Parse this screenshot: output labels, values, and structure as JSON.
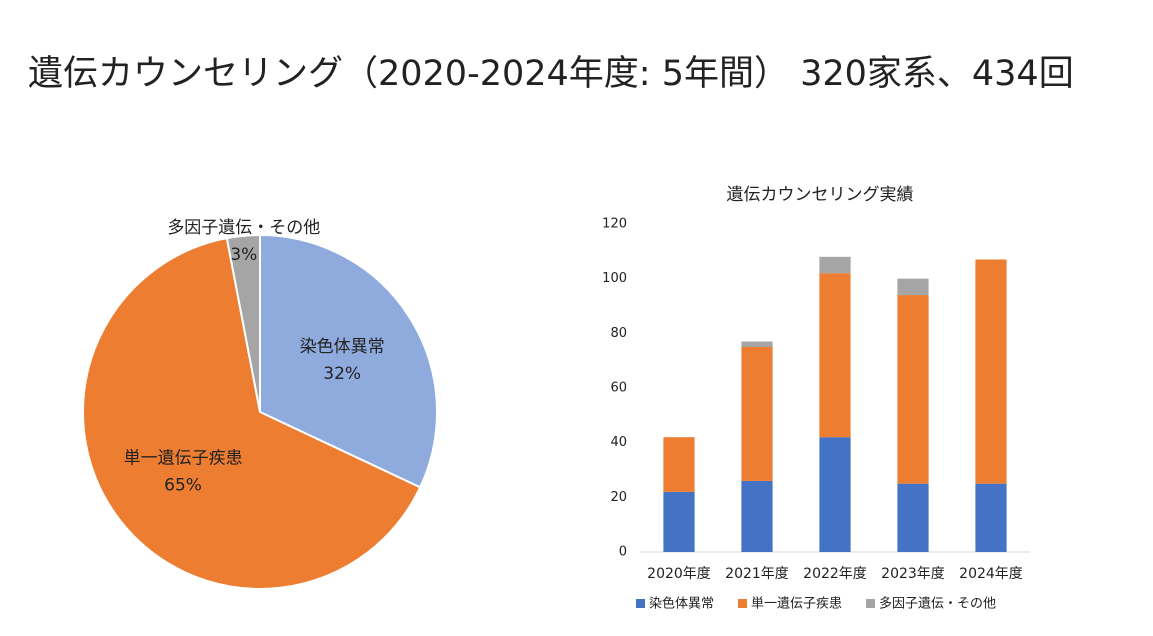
{
  "title": "遺伝カウンセリング（2020-2024年度: 5年間） 320家系、434回",
  "chart_data": [
    {
      "type": "pie",
      "categories": [
        "染色体異常",
        "単一遺伝子疾患",
        "多因子遺伝・その他"
      ],
      "values": [
        32,
        65,
        3
      ],
      "value_labels": [
        "32%",
        "65%",
        "3%"
      ],
      "colors": [
        "#8faadc",
        "#ed7d31",
        "#a5a5a5"
      ]
    },
    {
      "type": "bar",
      "stacked": true,
      "title": "遺伝カウンセリング実績",
      "categories": [
        "2020年度",
        "2021年度",
        "2022年度",
        "2023年度",
        "2024年度"
      ],
      "series": [
        {
          "name": "染色体異常",
          "color": "#4472c4",
          "values": [
            22,
            26,
            42,
            25,
            25
          ]
        },
        {
          "name": "単一遺伝子疾患",
          "color": "#ed7d31",
          "values": [
            20,
            49,
            60,
            69,
            82
          ]
        },
        {
          "name": "多因子遺伝・その他",
          "color": "#a5a5a5",
          "values": [
            0,
            2,
            6,
            6,
            0
          ]
        }
      ],
      "ylim": [
        0,
        120
      ],
      "yticks": [
        0,
        20,
        40,
        60,
        80,
        100,
        120
      ],
      "grid": false,
      "legend": "bottom"
    }
  ]
}
